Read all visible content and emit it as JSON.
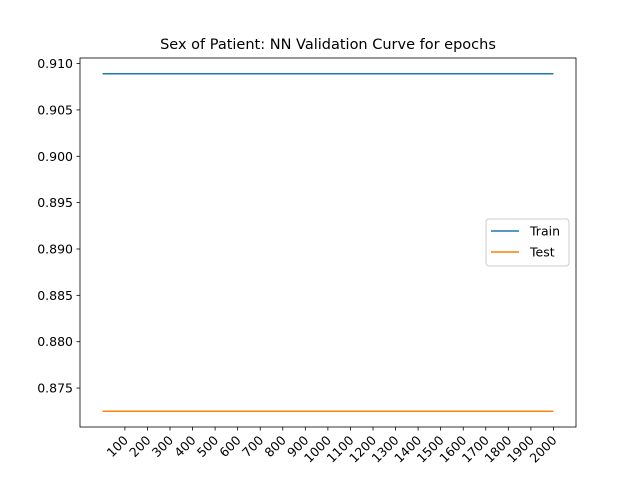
{
  "chart_data": {
    "type": "line",
    "title": "Sex of Patient: NN Validation Curve for epochs",
    "xlabel": "",
    "ylabel": "",
    "x": [
      1,
      2000
    ],
    "x_ticks": [
      100,
      200,
      300,
      400,
      500,
      600,
      700,
      800,
      900,
      1000,
      1100,
      1200,
      1300,
      1400,
      1500,
      1600,
      1700,
      1800,
      1900,
      2000
    ],
    "y_ticks": [
      0.875,
      0.88,
      0.885,
      0.89,
      0.895,
      0.9,
      0.905,
      0.91
    ],
    "y_tick_labels": [
      "0.875",
      "0.880",
      "0.885",
      "0.890",
      "0.895",
      "0.900",
      "0.905",
      "0.910"
    ],
    "ylim": [
      0.8708,
      0.9106
    ],
    "xlim": [
      -99,
      2100
    ],
    "series": [
      {
        "name": "Train",
        "color": "#1f77b4",
        "x": [
          1,
          2000
        ],
        "values": [
          0.9089,
          0.9089
        ]
      },
      {
        "name": "Test",
        "color": "#ff7f0e",
        "x": [
          1,
          2000
        ],
        "values": [
          0.8725,
          0.8725
        ]
      }
    ],
    "legend_position": "center-right",
    "grid": false
  }
}
